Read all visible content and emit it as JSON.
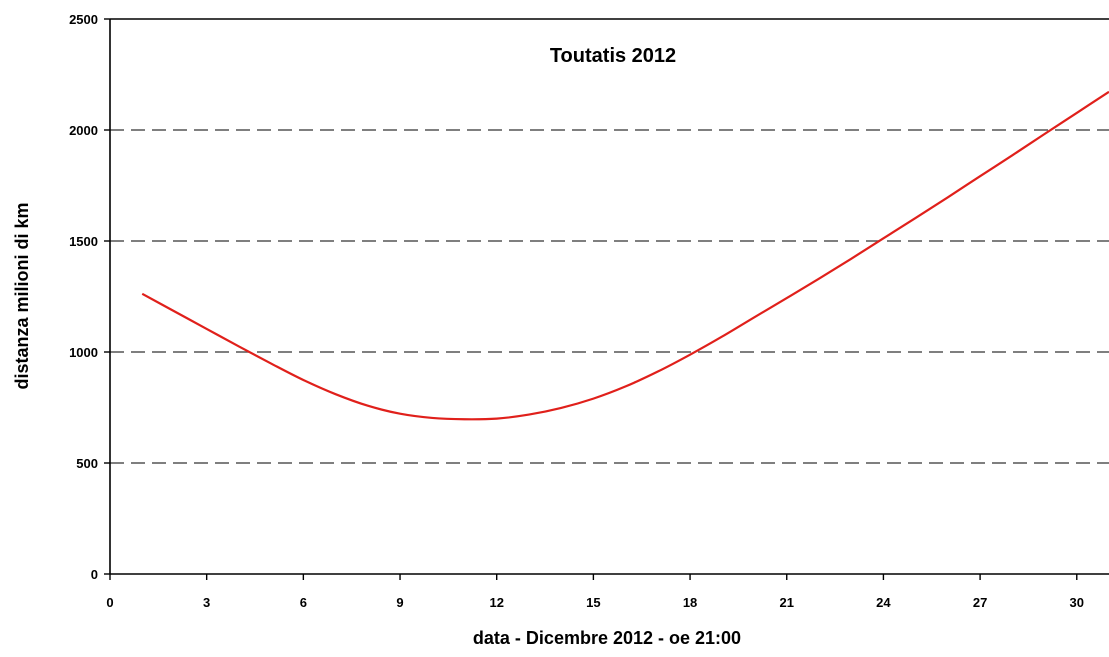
{
  "chart_data": {
    "type": "line",
    "title": "Toutatis 2012",
    "xlabel": "data - Dicembre 2012 - oe 21:00",
    "ylabel": "distanza milioni di km",
    "xlim": [
      0,
      31
    ],
    "ylim": [
      0,
      2500
    ],
    "xticks": [
      0,
      3,
      6,
      9,
      12,
      15,
      18,
      21,
      24,
      27,
      30
    ],
    "yticks": [
      0,
      500,
      1000,
      1500,
      2000,
      2500
    ],
    "grid": "horizontal dashed",
    "series": [
      {
        "color": "#e0201b",
        "x": [
          1,
          2,
          3,
          4,
          5,
          6,
          7,
          8,
          9,
          10,
          11,
          12,
          13,
          14,
          15,
          16,
          17,
          18,
          19,
          20,
          21,
          22,
          23,
          24,
          25,
          26,
          27,
          28,
          29,
          30,
          31
        ],
        "y": [
          1262,
          1183,
          1104,
          1025,
          948,
          874,
          810,
          758,
          722,
          703,
          697,
          700,
          718,
          748,
          790,
          845,
          912,
          988,
          1070,
          1157,
          1243,
          1330,
          1420,
          1512,
          1604,
          1697,
          1792,
          1886,
          1982,
          2077,
          2172
        ]
      }
    ]
  }
}
